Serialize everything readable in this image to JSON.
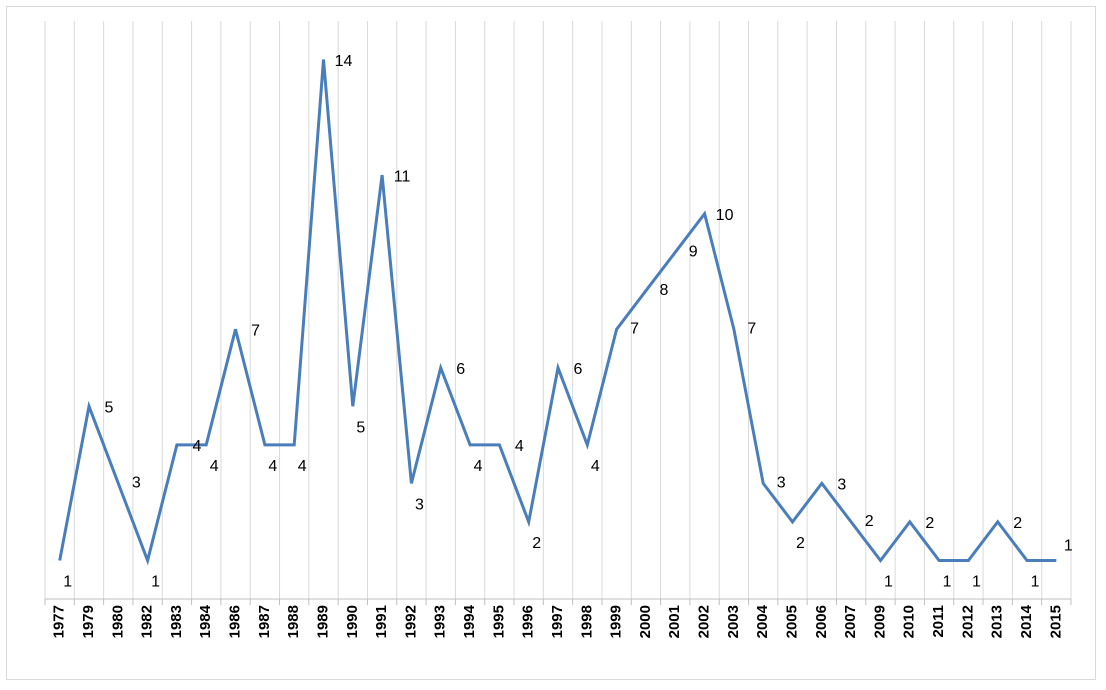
{
  "colors": {
    "series": "#4a7ebb",
    "grid": "#d9d9d9",
    "axis": "#bfbfbf"
  },
  "chart_data": {
    "type": "line",
    "title": "",
    "xlabel": "",
    "ylabel": "",
    "grid": true,
    "legend": "none",
    "ylim": [
      0,
      15
    ],
    "categories": [
      "1977",
      "1979",
      "1980",
      "1982",
      "1983",
      "1984",
      "1986",
      "1987",
      "1988",
      "1989",
      "1990",
      "1991",
      "1992",
      "1993",
      "1994",
      "1995",
      "1996",
      "1997",
      "1998",
      "1999",
      "2000",
      "2001",
      "2002",
      "2003",
      "2004",
      "2005",
      "2006",
      "2007",
      "2009",
      "2010",
      "2011",
      "2012",
      "2013",
      "2014",
      "2015"
    ],
    "series": [
      {
        "values": [
          1,
          5,
          3,
          1,
          4,
          4,
          7,
          4,
          4,
          14,
          5,
          11,
          3,
          6,
          4,
          4,
          2,
          6,
          4,
          7,
          8,
          9,
          10,
          7,
          3,
          2,
          3,
          2,
          1,
          2,
          1,
          1,
          2,
          1,
          1
        ],
        "data_labels": [
          "1",
          "5",
          "3",
          "1",
          "4",
          "4",
          "7",
          "4",
          "4",
          "14",
          "5",
          "11",
          "3",
          "6",
          "4",
          "4",
          "2",
          "6",
          "4",
          "7",
          "8",
          "9",
          "10",
          "7",
          "3",
          "2",
          "3",
          "2",
          "1",
          "2",
          "1",
          "1",
          "2",
          "1",
          "1"
        ]
      }
    ]
  }
}
